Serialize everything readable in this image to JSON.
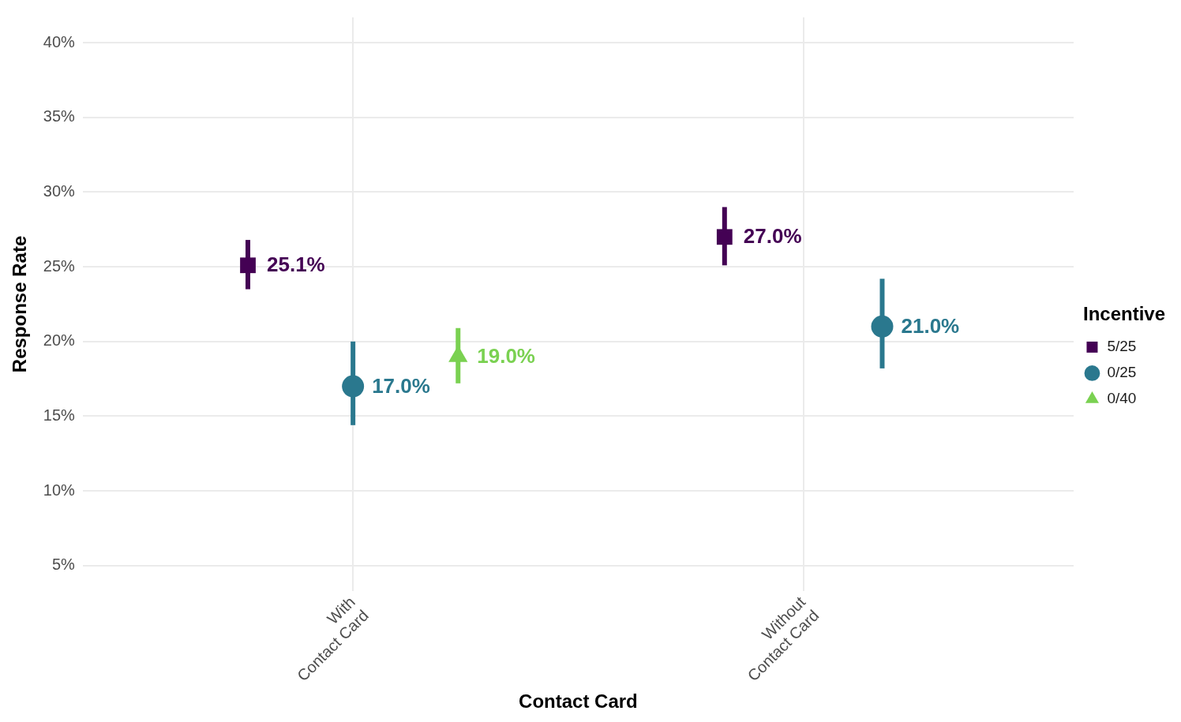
{
  "chart_data": {
    "type": "scatter",
    "xlabel": "Contact Card",
    "ylabel": "Response Rate",
    "legend_title": "Incentive",
    "legend": "right",
    "grid": true,
    "categories": [
      "With\nContact Card",
      "Without\nContact Card"
    ],
    "ylim": [
      3.3,
      41.7
    ],
    "yticks": [
      {
        "value": 5,
        "label": "5%"
      },
      {
        "value": 10,
        "label": "10%"
      },
      {
        "value": 15,
        "label": "15%"
      },
      {
        "value": 20,
        "label": "20%"
      },
      {
        "value": 25,
        "label": "25%"
      },
      {
        "value": 30,
        "label": "30%"
      },
      {
        "value": 35,
        "label": "35%"
      },
      {
        "value": 40,
        "label": "40%"
      }
    ],
    "series": [
      {
        "name": "5/25",
        "color": "#440154",
        "marker": "square",
        "values": [
          25.1,
          27.0
        ],
        "errors": [
          [
            23.5,
            26.8
          ],
          [
            25.1,
            29.0
          ]
        ],
        "value_labels": [
          "25.1%",
          "27.0%"
        ]
      },
      {
        "name": "0/25",
        "color": "#2a788e",
        "marker": "circle",
        "values": [
          17.0,
          21.0
        ],
        "errors": [
          [
            14.4,
            20.0
          ],
          [
            18.2,
            24.2
          ]
        ],
        "value_labels": [
          "17.0%",
          "21.0%"
        ]
      },
      {
        "name": "0/40",
        "color": "#7ad151",
        "marker": "triangle",
        "values": [
          19.0,
          null
        ],
        "errors": [
          [
            17.2,
            20.9
          ],
          null
        ],
        "value_labels": [
          "19.0%",
          null
        ]
      }
    ]
  }
}
